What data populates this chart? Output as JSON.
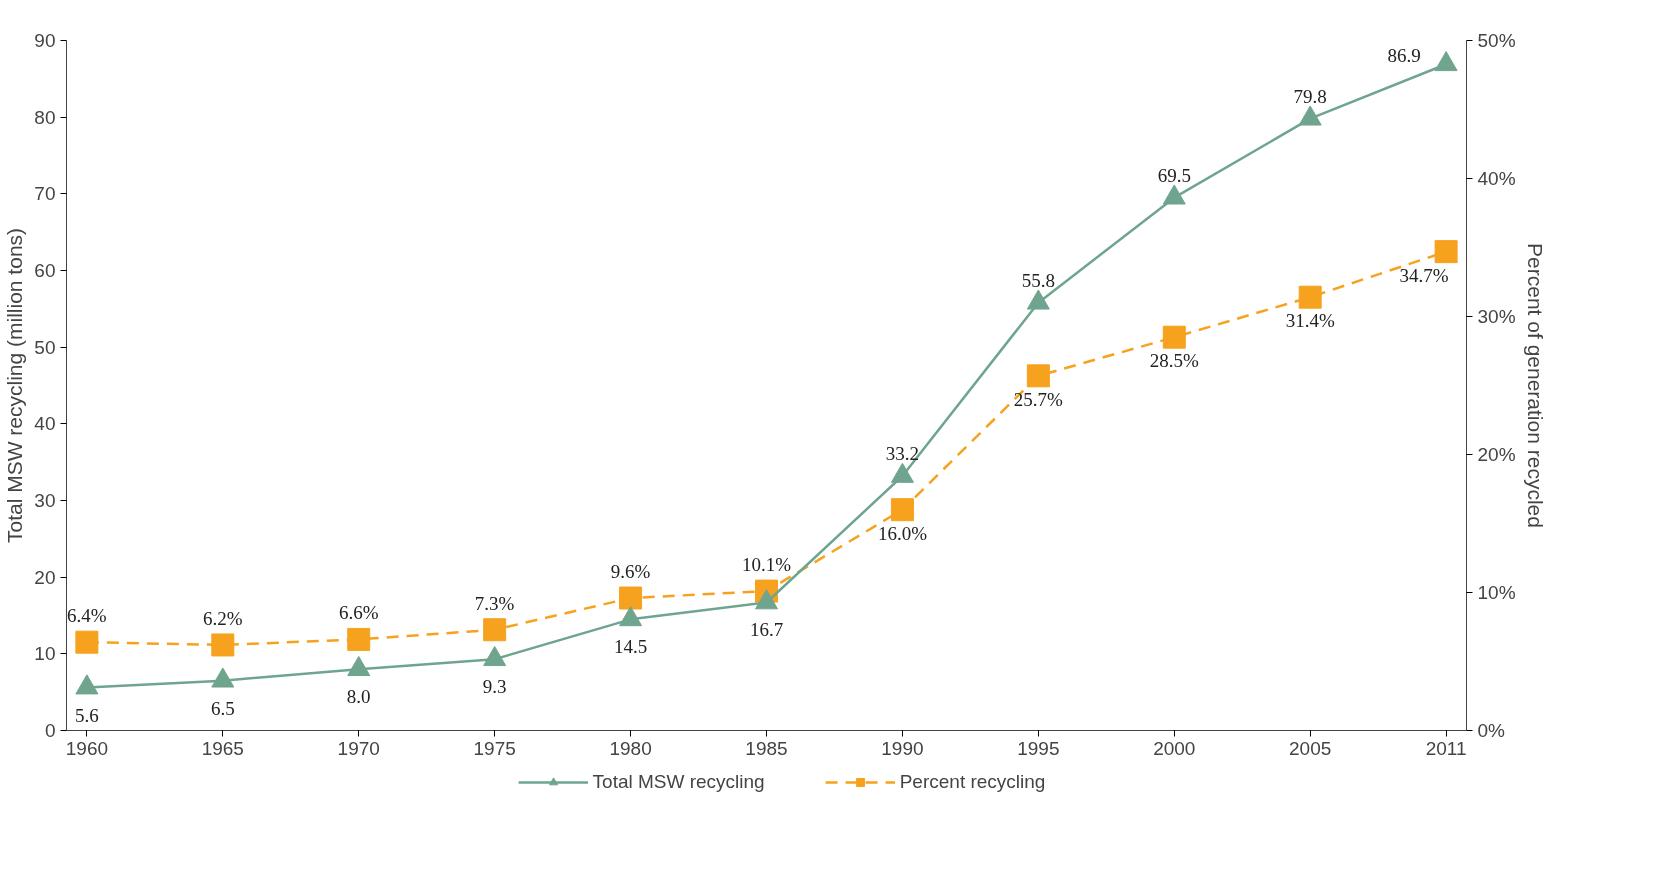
{
  "chart_data": {
    "type": "line",
    "ylabel": "Total MSW recycling (million tons)",
    "y2label": "Percent of generation recycled",
    "categories": [
      "1960",
      "1965",
      "1970",
      "1975",
      "1980",
      "1985",
      "1990",
      "1995",
      "2000",
      "2005",
      "2011"
    ],
    "ylim": [
      0,
      90
    ],
    "yticks": [
      0,
      10,
      20,
      30,
      40,
      50,
      60,
      70,
      80,
      90
    ],
    "y2lim": [
      0,
      50
    ],
    "y2ticks": [
      {
        "value": 0,
        "label": "0%"
      },
      {
        "value": 10,
        "label": "10%"
      },
      {
        "value": 20,
        "label": "20%"
      },
      {
        "value": 30,
        "label": "30%"
      },
      {
        "value": 40,
        "label": "40%"
      },
      {
        "value": 50,
        "label": "50%"
      }
    ],
    "grid": false,
    "legend": "bottom",
    "series": [
      {
        "name": "Total MSW recycling",
        "color": "#6fa58e",
        "marker": "triangle",
        "line_style": "solid",
        "values": [
          5.6,
          6.5,
          8.0,
          9.3,
          14.5,
          16.7,
          33.2,
          55.8,
          69.5,
          79.8,
          86.9
        ],
        "value_labels": [
          "5.6",
          "6.5",
          "8.0",
          "9.3",
          "14.5",
          "16.7",
          "33.2",
          "55.8",
          "69.5",
          "79.8",
          "86.9"
        ]
      },
      {
        "name": "Percent recycling",
        "color": "#f6a21e",
        "marker": "square",
        "line_style": "dashed",
        "axis": "y2",
        "values": [
          6.4,
          6.2,
          6.6,
          7.3,
          9.6,
          10.1,
          16.0,
          25.7,
          28.5,
          31.4,
          34.7
        ],
        "value_labels": [
          "6.4%",
          "6.2%",
          "6.6%",
          "7.3%",
          "9.6%",
          "10.1%",
          "16.0%",
          "25.7%",
          "28.5%",
          "31.4%",
          "34.7%"
        ]
      }
    ]
  }
}
